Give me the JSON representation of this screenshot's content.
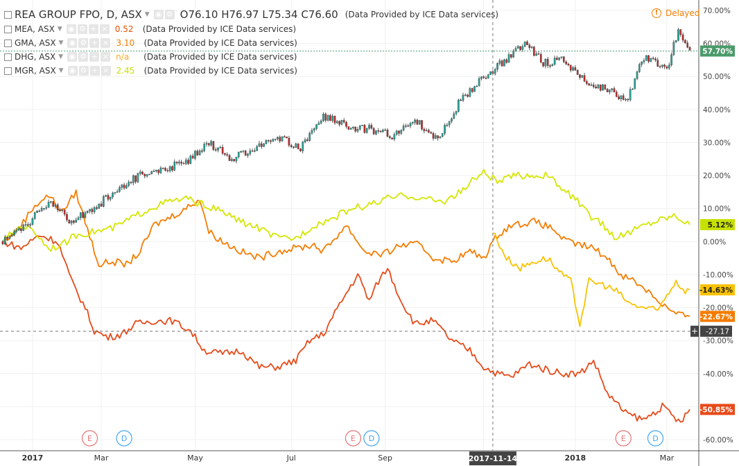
{
  "header": {
    "symbol": "REA GROUP FPO, D, ASX",
    "open": "O76.10",
    "high": "H76.97",
    "low": "L75.34",
    "close": "C76.60",
    "provider": "(Data Provided by ICE Data services)",
    "delayed": "Delayed"
  },
  "comparisons": [
    {
      "label": "MEA, ASX",
      "value": "0.52",
      "provider": "(Data Provided by ICE Data services)",
      "color": "#e65100"
    },
    {
      "label": "GMA, ASX",
      "value": "3.10",
      "provider": "(Data Provided by ICE Data services)",
      "color": "#f57c00"
    },
    {
      "label": "DHG, ASX",
      "value": "n/a",
      "provider": "(Data Provided by ICE Data services)",
      "color": "#f9a825"
    },
    {
      "label": "MGR, ASX",
      "value": "2.45",
      "provider": "(Data Provided by ICE Data services)",
      "color": "#c6e000"
    }
  ],
  "chart_data": {
    "type": "line",
    "y_axis": {
      "min": -60,
      "max": 70,
      "step": 10,
      "unit": "%",
      "position": "right"
    },
    "y_ticks": [
      "70.00%",
      "60.00%",
      "50.00%",
      "40.00%",
      "30.00%",
      "20.00%",
      "10.00%",
      "0.00%",
      "-10.00%",
      "-20.00%",
      "-30.00%",
      "-40.00%",
      "-50.00%",
      "-60.00%"
    ],
    "x_range": [
      0,
      300
    ],
    "x_ticks": [
      {
        "label": "2017",
        "x": 13
      },
      {
        "label": "Mar",
        "x": 43
      },
      {
        "label": "May",
        "x": 84
      },
      {
        "label": "Jul",
        "x": 126
      },
      {
        "label": "Sep",
        "x": 167
      },
      {
        "label": "Nov",
        "x": 210
      },
      {
        "label": "2018",
        "x": 250
      },
      {
        "label": "Mar",
        "x": 290
      }
    ],
    "crosshair": {
      "date": "2017-11-14",
      "x": 214,
      "value": "-27.17",
      "y": -27.17
    },
    "last_labels": [
      {
        "text": "57.70%",
        "y": 57.7,
        "color": "#4a9a6a"
      },
      {
        "text": "5.12%",
        "y": 5.12,
        "color": "#c6e000"
      },
      {
        "text": "-14.63%",
        "y": -14.63,
        "color": "#f9c200"
      },
      {
        "text": "-22.67%",
        "y": -22.67,
        "color": "#f57c00"
      },
      {
        "text": "-50.85%",
        "y": -50.85,
        "color": "#e64a19"
      }
    ],
    "events": [
      {
        "type": "E",
        "x": 38,
        "color": "#e57373"
      },
      {
        "type": "D",
        "x": 53,
        "color": "#42a5f5"
      },
      {
        "type": "E",
        "x": 153,
        "color": "#e57373"
      },
      {
        "type": "D",
        "x": 161,
        "color": "#42a5f5"
      },
      {
        "type": "E",
        "x": 271,
        "color": "#e57373"
      },
      {
        "type": "D",
        "x": 285,
        "color": "#42a5f5"
      }
    ],
    "series": [
      {
        "name": "REA GROUP FPO, D, ASX",
        "style": "candles",
        "color_up": "#26a69a",
        "color_down": "#c62828",
        "points": [
          [
            0,
            0
          ],
          [
            10,
            5
          ],
          [
            20,
            12
          ],
          [
            30,
            6
          ],
          [
            40,
            10
          ],
          [
            50,
            16
          ],
          [
            60,
            20
          ],
          [
            70,
            22
          ],
          [
            80,
            24
          ],
          [
            90,
            30
          ],
          [
            100,
            25
          ],
          [
            110,
            28
          ],
          [
            120,
            32
          ],
          [
            130,
            28
          ],
          [
            140,
            38
          ],
          [
            150,
            35
          ],
          [
            160,
            34
          ],
          [
            170,
            32
          ],
          [
            180,
            37
          ],
          [
            190,
            31
          ],
          [
            200,
            43
          ],
          [
            210,
            50
          ],
          [
            220,
            55
          ],
          [
            228,
            60
          ],
          [
            236,
            54
          ],
          [
            245,
            55
          ],
          [
            255,
            48
          ],
          [
            265,
            46
          ],
          [
            272,
            42
          ],
          [
            280,
            56
          ],
          [
            290,
            52
          ],
          [
            295,
            64
          ],
          [
            300,
            57.7
          ]
        ]
      },
      {
        "name": "MEA, ASX",
        "style": "line",
        "color": "#e64a19",
        "points": [
          [
            0,
            0
          ],
          [
            8,
            -2
          ],
          [
            16,
            2
          ],
          [
            24,
            0
          ],
          [
            30,
            -12
          ],
          [
            36,
            -20
          ],
          [
            40,
            -27
          ],
          [
            46,
            -29
          ],
          [
            52,
            -28
          ],
          [
            58,
            -25
          ],
          [
            66,
            -24
          ],
          [
            74,
            -24
          ],
          [
            82,
            -27
          ],
          [
            88,
            -33
          ],
          [
            96,
            -34
          ],
          [
            104,
            -33
          ],
          [
            112,
            -38
          ],
          [
            120,
            -38
          ],
          [
            128,
            -36
          ],
          [
            134,
            -30
          ],
          [
            140,
            -28
          ],
          [
            148,
            -18
          ],
          [
            155,
            -10
          ],
          [
            160,
            -18
          ],
          [
            164,
            -12
          ],
          [
            168,
            -8
          ],
          [
            174,
            -18
          ],
          [
            180,
            -25
          ],
          [
            188,
            -24
          ],
          [
            196,
            -30
          ],
          [
            204,
            -33
          ],
          [
            210,
            -38
          ],
          [
            216,
            -40
          ],
          [
            222,
            -41
          ],
          [
            230,
            -37
          ],
          [
            238,
            -39
          ],
          [
            246,
            -40
          ],
          [
            252,
            -40
          ],
          [
            258,
            -36
          ],
          [
            264,
            -46
          ],
          [
            272,
            -52
          ],
          [
            280,
            -54
          ],
          [
            288,
            -50
          ],
          [
            296,
            -55
          ],
          [
            300,
            -50.85
          ]
        ]
      },
      {
        "name": "GMA, ASX",
        "style": "line",
        "color": "#f57c00",
        "points": [
          [
            0,
            0
          ],
          [
            6,
            3
          ],
          [
            14,
            11
          ],
          [
            20,
            14
          ],
          [
            26,
            9
          ],
          [
            32,
            15
          ],
          [
            36,
            6
          ],
          [
            42,
            -7
          ],
          [
            48,
            -6
          ],
          [
            54,
            -7
          ],
          [
            60,
            -3
          ],
          [
            66,
            5
          ],
          [
            72,
            7
          ],
          [
            80,
            10
          ],
          [
            86,
            13
          ],
          [
            90,
            3
          ],
          [
            96,
            0
          ],
          [
            104,
            -3
          ],
          [
            112,
            -5
          ],
          [
            120,
            -3
          ],
          [
            128,
            -2
          ],
          [
            136,
            -1
          ],
          [
            140,
            -3
          ],
          [
            150,
            5
          ],
          [
            158,
            -3
          ],
          [
            166,
            -4
          ],
          [
            174,
            -1
          ],
          [
            182,
            -1
          ],
          [
            188,
            -5
          ],
          [
            196,
            -6
          ],
          [
            204,
            -3
          ],
          [
            210,
            -5
          ],
          [
            216,
            2
          ],
          [
            222,
            5
          ],
          [
            232,
            6
          ],
          [
            240,
            4
          ],
          [
            246,
            0
          ],
          [
            252,
            -1
          ],
          [
            258,
            -2
          ],
          [
            264,
            -5
          ],
          [
            270,
            -10
          ],
          [
            276,
            -12
          ],
          [
            282,
            -15
          ],
          [
            288,
            -19
          ],
          [
            294,
            -22
          ],
          [
            300,
            -22.67
          ]
        ]
      },
      {
        "name": "DHG, ASX",
        "style": "line",
        "color": "#f9c200",
        "points": [
          [
            214,
            3
          ],
          [
            220,
            -5
          ],
          [
            226,
            -8
          ],
          [
            232,
            -6
          ],
          [
            238,
            -5
          ],
          [
            244,
            -10
          ],
          [
            248,
            -12
          ],
          [
            252,
            -25
          ],
          [
            256,
            -12
          ],
          [
            262,
            -13
          ],
          [
            268,
            -15
          ],
          [
            274,
            -19
          ],
          [
            280,
            -20
          ],
          [
            286,
            -21
          ],
          [
            290,
            -16
          ],
          [
            294,
            -12
          ],
          [
            298,
            -15
          ],
          [
            300,
            -14.63
          ]
        ]
      },
      {
        "name": "MGR, ASX",
        "style": "line",
        "color": "#d4e600",
        "points": [
          [
            0,
            0
          ],
          [
            8,
            5
          ],
          [
            14,
            3
          ],
          [
            20,
            -2
          ],
          [
            26,
            -1
          ],
          [
            32,
            2
          ],
          [
            40,
            3
          ],
          [
            48,
            4
          ],
          [
            56,
            7
          ],
          [
            64,
            10
          ],
          [
            72,
            12
          ],
          [
            80,
            13
          ],
          [
            88,
            11
          ],
          [
            96,
            9
          ],
          [
            104,
            6
          ],
          [
            112,
            4
          ],
          [
            120,
            1
          ],
          [
            128,
            1
          ],
          [
            136,
            5
          ],
          [
            144,
            7
          ],
          [
            152,
            10
          ],
          [
            160,
            11
          ],
          [
            168,
            13
          ],
          [
            176,
            14
          ],
          [
            184,
            13
          ],
          [
            192,
            12
          ],
          [
            200,
            15
          ],
          [
            206,
            19
          ],
          [
            210,
            21
          ],
          [
            216,
            18
          ],
          [
            224,
            20
          ],
          [
            232,
            20
          ],
          [
            238,
            20
          ],
          [
            244,
            16
          ],
          [
            250,
            13
          ],
          [
            256,
            8
          ],
          [
            262,
            5
          ],
          [
            268,
            1
          ],
          [
            274,
            3
          ],
          [
            280,
            5
          ],
          [
            288,
            7
          ],
          [
            294,
            8
          ],
          [
            300,
            5.12
          ]
        ]
      }
    ]
  }
}
